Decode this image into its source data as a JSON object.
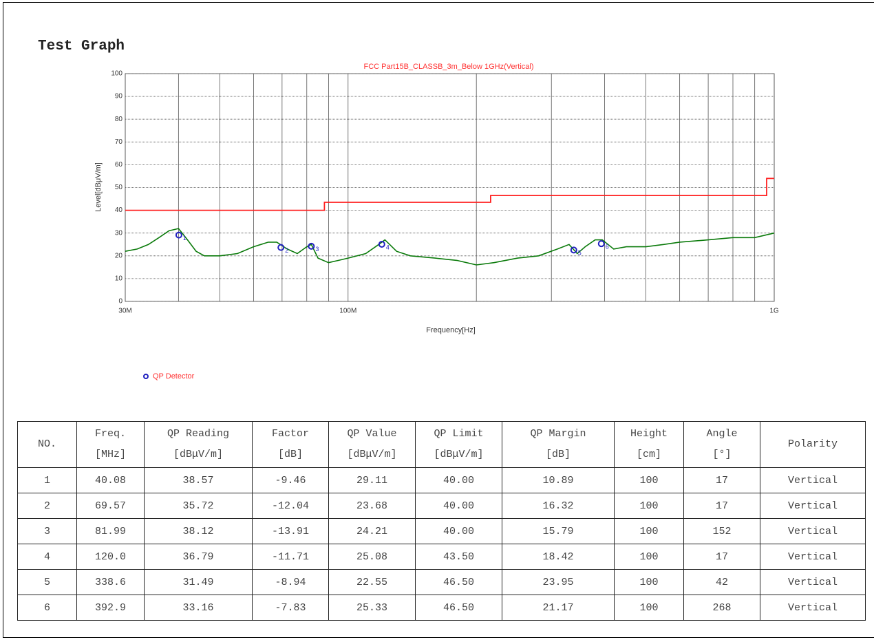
{
  "title": "Test Graph",
  "chart_data": {
    "type": "line",
    "title": "FCC Part15B_CLASSB_3m_Below 1GHz(Vertical)",
    "xlabel": "Frequency[Hz]",
    "ylabel": "Level[dBμV/m]",
    "xscale": "log",
    "xlim": [
      30,
      1000
    ],
    "xticks": [
      {
        "value": 30,
        "label": "30M"
      },
      {
        "value": 100,
        "label": "100M"
      },
      {
        "value": 1000,
        "label": "1G"
      }
    ],
    "x_minor_ticks": [
      40,
      50,
      60,
      70,
      80,
      90,
      200,
      300,
      400,
      500,
      600,
      700,
      800,
      900
    ],
    "ylim": [
      0,
      100
    ],
    "yticks": [
      0,
      10,
      20,
      30,
      40,
      50,
      60,
      70,
      80,
      90,
      100
    ],
    "grid": true,
    "limit": {
      "color": "#ff2020",
      "x": [
        30,
        88,
        88,
        216,
        216,
        960,
        960,
        1000
      ],
      "values": [
        40,
        40,
        43.5,
        43.5,
        46.5,
        46.5,
        54,
        54
      ]
    },
    "trace": {
      "color": "#0a7a0a",
      "x": [
        30,
        32,
        34,
        36,
        38,
        40,
        42,
        44,
        46,
        50,
        55,
        60,
        65,
        68,
        72,
        76,
        80,
        82,
        85,
        90,
        95,
        100,
        110,
        118,
        122,
        130,
        140,
        160,
        180,
        200,
        220,
        250,
        280,
        310,
        330,
        345,
        360,
        380,
        395,
        420,
        450,
        500,
        550,
        600,
        700,
        800,
        900,
        1000
      ],
      "values": [
        22,
        23,
        25,
        28,
        31,
        32,
        27,
        22,
        20,
        20,
        21,
        24,
        26,
        26,
        23,
        21,
        24,
        25,
        19,
        17,
        18,
        19,
        21,
        25,
        27,
        22,
        20,
        19,
        18,
        16,
        17,
        19,
        20,
        23,
        25,
        21,
        24,
        27,
        27,
        23,
        24,
        24,
        25,
        26,
        27,
        28,
        28,
        30
      ]
    },
    "series": [
      {
        "name": "QP Detector",
        "color": "#2020c0",
        "x": [
          40.08,
          69.57,
          81.99,
          120.0,
          338.6,
          392.9
        ],
        "values": [
          29.11,
          23.68,
          24.21,
          25.08,
          22.55,
          25.33
        ],
        "marker_labels": [
          "1",
          "2",
          "3",
          "4",
          "5",
          "6"
        ]
      }
    ]
  },
  "table": {
    "header": [
      [
        "NO."
      ],
      [
        "Freq.",
        "[MHz]"
      ],
      [
        "QP Reading",
        "[dBμV/m]"
      ],
      [
        "Factor",
        "[dB]"
      ],
      [
        "QP Value",
        "[dBμV/m]"
      ],
      [
        "QP Limit",
        "[dBμV/m]"
      ],
      [
        "QP Margin",
        "[dB]"
      ],
      [
        "Height",
        "[cm]"
      ],
      [
        "Angle",
        "[°]"
      ],
      [
        "Polarity"
      ]
    ],
    "rows": [
      [
        "1",
        "40.08",
        "38.57",
        "-9.46",
        "29.11",
        "40.00",
        "10.89",
        "100",
        "17",
        "Vertical"
      ],
      [
        "2",
        "69.57",
        "35.72",
        "-12.04",
        "23.68",
        "40.00",
        "16.32",
        "100",
        "17",
        "Vertical"
      ],
      [
        "3",
        "81.99",
        "38.12",
        "-13.91",
        "24.21",
        "40.00",
        "15.79",
        "100",
        "152",
        "Vertical"
      ],
      [
        "4",
        "120.0",
        "36.79",
        "-11.71",
        "25.08",
        "43.50",
        "18.42",
        "100",
        "17",
        "Vertical"
      ],
      [
        "5",
        "338.6",
        "31.49",
        "-8.94",
        "22.55",
        "46.50",
        "23.95",
        "100",
        "42",
        "Vertical"
      ],
      [
        "6",
        "392.9",
        "33.16",
        "-7.83",
        "25.33",
        "46.50",
        "21.17",
        "100",
        "268",
        "Vertical"
      ]
    ]
  }
}
